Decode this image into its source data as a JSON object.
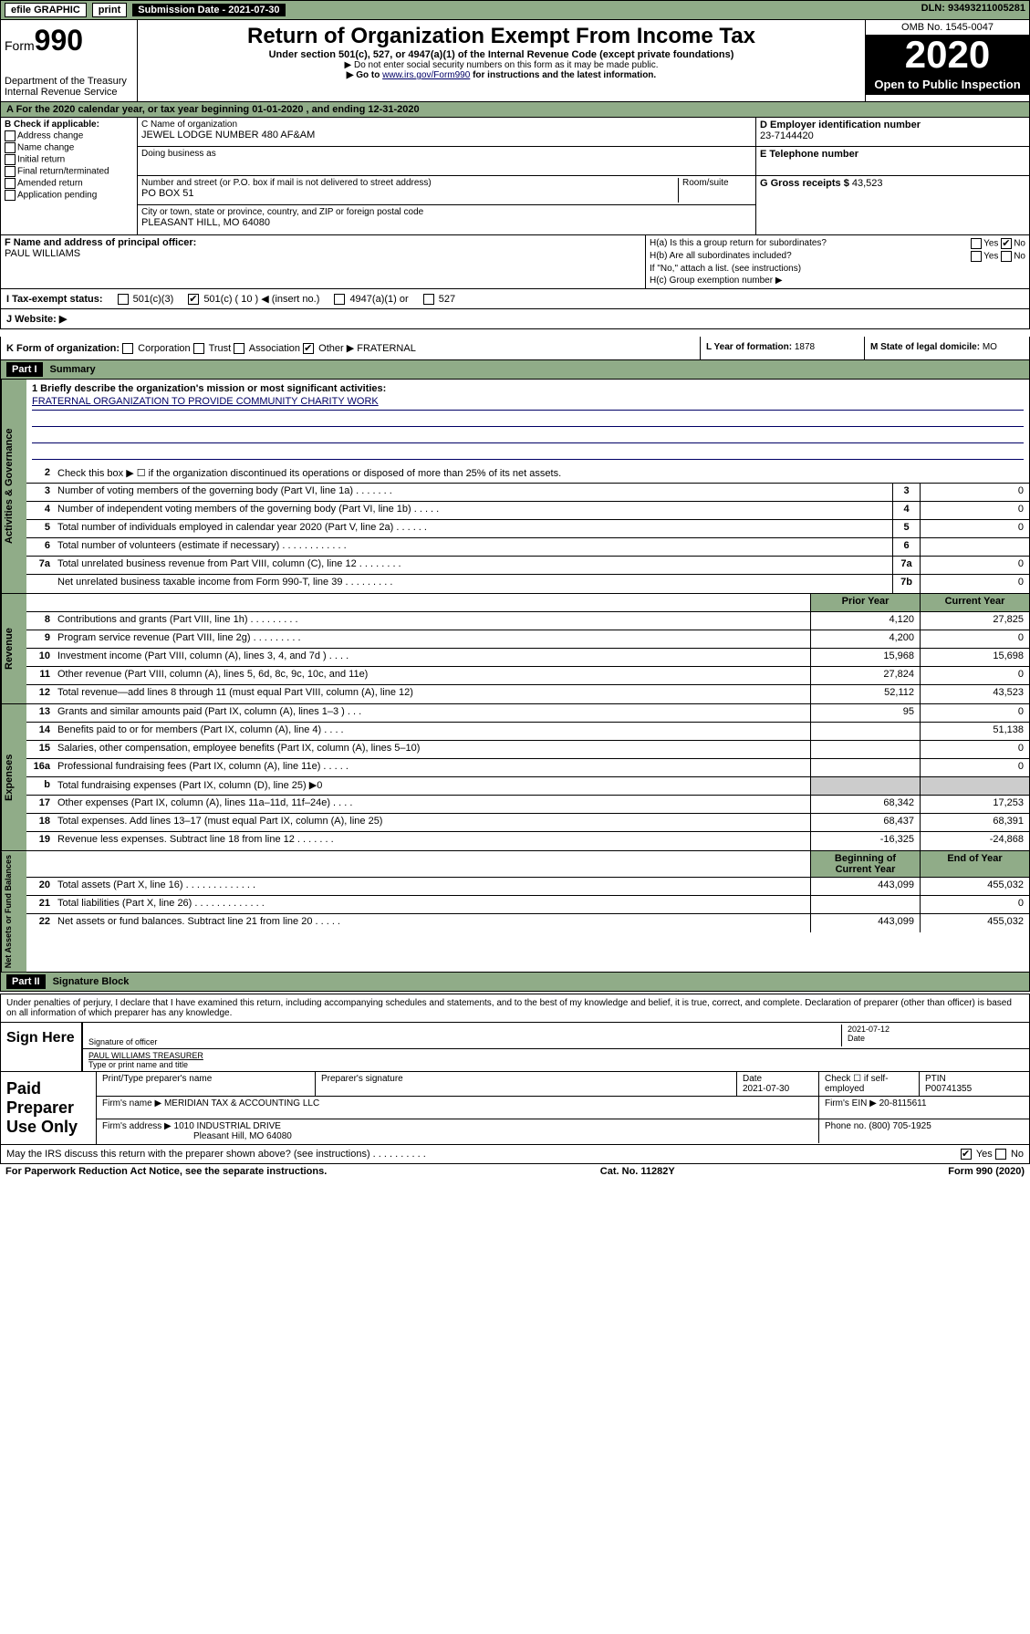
{
  "topbar": {
    "efile": "efile GRAPHIC",
    "print": "print",
    "submission_label": "Submission Date - 2021-07-30",
    "dln": "DLN: 93493211005281"
  },
  "header": {
    "form_prefix": "Form",
    "form_number": "990",
    "dept1": "Department of the Treasury",
    "dept2": "Internal Revenue Service",
    "title": "Return of Organization Exempt From Income Tax",
    "subtitle": "Under section 501(c), 527, or 4947(a)(1) of the Internal Revenue Code (except private foundations)",
    "note1": "▶ Do not enter social security numbers on this form as it may be made public.",
    "note2_pre": "▶ Go to ",
    "note2_link": "www.irs.gov/Form990",
    "note2_post": " for instructions and the latest information.",
    "omb": "OMB No. 1545-0047",
    "year": "2020",
    "open_public": "Open to Public Inspection"
  },
  "row_a": "A For the 2020 calendar year, or tax year beginning 01-01-2020    , and ending 12-31-2020",
  "section_b": {
    "label": "B Check if applicable:",
    "opts": [
      "Address change",
      "Name change",
      "Initial return",
      "Final return/terminated",
      "Amended return",
      "Application pending"
    ]
  },
  "section_c": {
    "name_lbl": "C Name of organization",
    "name": "JEWEL LODGE NUMBER 480 AF&AM",
    "dba_lbl": "Doing business as",
    "addr_lbl": "Number and street (or P.O. box if mail is not delivered to street address)",
    "room_lbl": "Room/suite",
    "addr": "PO BOX 51",
    "city_lbl": "City or town, state or province, country, and ZIP or foreign postal code",
    "city": "PLEASANT HILL, MO  64080"
  },
  "section_d": {
    "lbl": "D Employer identification number",
    "val": "23-7144420"
  },
  "section_e": {
    "lbl": "E Telephone number",
    "val": ""
  },
  "section_g": {
    "lbl": "G Gross receipts $",
    "val": "43,523"
  },
  "section_f": {
    "lbl": "F Name and address of principal officer:",
    "val": "PAUL WILLIAMS"
  },
  "section_h": {
    "ha": "H(a)  Is this a group return for subordinates?",
    "hb": "H(b)  Are all subordinates included?",
    "hb_note": "If \"No,\" attach a list. (see instructions)",
    "hc": "H(c)  Group exemption number ▶",
    "yes": "Yes",
    "no": "No"
  },
  "tax_exempt": {
    "lbl": "I  Tax-exempt status:",
    "c3": "501(c)(3)",
    "c": "501(c) ( 10 ) ◀ (insert no.)",
    "a1": "4947(a)(1) or",
    "527": "527"
  },
  "website": {
    "lbl": "J  Website: ▶"
  },
  "section_k": {
    "lbl": "K Form of organization:",
    "corp": "Corporation",
    "trust": "Trust",
    "assoc": "Association",
    "other": "Other ▶",
    "other_val": "FRATERNAL"
  },
  "section_l": {
    "lbl": "L Year of formation:",
    "val": "1878"
  },
  "section_m": {
    "lbl": "M State of legal domicile:",
    "val": "MO"
  },
  "part1": {
    "title": "Part I",
    "subtitle": "Summary",
    "line1_lbl": "1  Briefly describe the organization's mission or most significant activities:",
    "mission": "FRATERNAL ORGANIZATION TO PROVIDE COMMUNITY CHARITY WORK",
    "line2": "Check this box ▶ ☐ if the organization discontinued its operations or disposed of more than 25% of its net assets.",
    "gov_label": "Activities & Governance",
    "rev_label": "Revenue",
    "exp_label": "Expenses",
    "net_label": "Net Assets or Fund Balances",
    "lines_gov": [
      {
        "n": "3",
        "d": "Number of voting members of the governing body (Part VI, line 1a)   .    .    .    .    .    .    .",
        "b": "3",
        "v": "0"
      },
      {
        "n": "4",
        "d": "Number of independent voting members of the governing body (Part VI, line 1b)   .    .    .    .    .",
        "b": "4",
        "v": "0"
      },
      {
        "n": "5",
        "d": "Total number of individuals employed in calendar year 2020 (Part V, line 2a)   .    .    .    .    .    .",
        "b": "5",
        "v": "0"
      },
      {
        "n": "6",
        "d": "Total number of volunteers (estimate if necessary)   .    .    .    .    .    .    .    .    .    .    .    .",
        "b": "6",
        "v": ""
      },
      {
        "n": "7a",
        "d": "Total unrelated business revenue from Part VIII, column (C), line 12   .    .    .    .    .    .    .    .",
        "b": "7a",
        "v": "0"
      },
      {
        "n": "",
        "d": "Net unrelated business taxable income from Form 990-T, line 39   .    .    .    .    .    .    .    .    .",
        "b": "7b",
        "v": "0"
      }
    ],
    "col_prior": "Prior Year",
    "col_current": "Current Year",
    "col_begin": "Beginning of Current Year",
    "col_end": "End of Year",
    "lines_rev": [
      {
        "n": "8",
        "d": "Contributions and grants (Part VIII, line 1h)   .    .    .    .    .    .    .    .    .",
        "p": "4,120",
        "c": "27,825"
      },
      {
        "n": "9",
        "d": "Program service revenue (Part VIII, line 2g)   .    .    .    .    .    .    .    .    .",
        "p": "4,200",
        "c": "0"
      },
      {
        "n": "10",
        "d": "Investment income (Part VIII, column (A), lines 3, 4, and 7d )   .    .    .    .",
        "p": "15,968",
        "c": "15,698"
      },
      {
        "n": "11",
        "d": "Other revenue (Part VIII, column (A), lines 5, 6d, 8c, 9c, 10c, and 11e)",
        "p": "27,824",
        "c": "0"
      },
      {
        "n": "12",
        "d": "Total revenue—add lines 8 through 11 (must equal Part VIII, column (A), line 12)",
        "p": "52,112",
        "c": "43,523"
      }
    ],
    "lines_exp": [
      {
        "n": "13",
        "d": "Grants and similar amounts paid (Part IX, column (A), lines 1–3 )   .    .    .",
        "p": "95",
        "c": "0"
      },
      {
        "n": "14",
        "d": "Benefits paid to or for members (Part IX, column (A), line 4)   .    .    .    .",
        "p": "",
        "c": "51,138"
      },
      {
        "n": "15",
        "d": "Salaries, other compensation, employee benefits (Part IX, column (A), lines 5–10)",
        "p": "",
        "c": "0"
      },
      {
        "n": "16a",
        "d": "Professional fundraising fees (Part IX, column (A), line 11e)   .    .    .    .    .",
        "p": "",
        "c": "0"
      },
      {
        "n": "b",
        "d": "Total fundraising expenses (Part IX, column (D), line 25) ▶0",
        "p": "",
        "c": "",
        "gray": true
      },
      {
        "n": "17",
        "d": "Other expenses (Part IX, column (A), lines 11a–11d, 11f–24e)   .    .    .    .",
        "p": "68,342",
        "c": "17,253"
      },
      {
        "n": "18",
        "d": "Total expenses. Add lines 13–17 (must equal Part IX, column (A), line 25)",
        "p": "68,437",
        "c": "68,391"
      },
      {
        "n": "19",
        "d": "Revenue less expenses. Subtract line 18 from line 12   .    .    .    .    .    .    .",
        "p": "-16,325",
        "c": "-24,868"
      }
    ],
    "lines_net": [
      {
        "n": "20",
        "d": "Total assets (Part X, line 16)   .    .    .    .    .    .    .    .    .    .    .    .    .",
        "p": "443,099",
        "c": "455,032"
      },
      {
        "n": "21",
        "d": "Total liabilities (Part X, line 26)   .    .    .    .    .    .    .    .    .    .    .    .    .",
        "p": "",
        "c": "0"
      },
      {
        "n": "22",
        "d": "Net assets or fund balances. Subtract line 21 from line 20   .    .    .    .    .",
        "p": "443,099",
        "c": "455,032"
      }
    ]
  },
  "part2": {
    "title": "Part II",
    "subtitle": "Signature Block",
    "decl": "Under penalties of perjury, I declare that I have examined this return, including accompanying schedules and statements, and to the best of my knowledge and belief, it is true, correct, and complete. Declaration of preparer (other than officer) is based on all information of which preparer has any knowledge.",
    "sign_here": "Sign Here",
    "sig_officer_lbl": "Signature of officer",
    "sig_date": "2021-07-12",
    "sig_date_lbl": "Date",
    "name_title": "PAUL WILLIAMS  TREASURER",
    "name_title_lbl": "Type or print name and title"
  },
  "paid_prep": {
    "label": "Paid Preparer Use Only",
    "r1": {
      "c1_lbl": "Print/Type preparer's name",
      "c2_lbl": "Preparer's signature",
      "c3_lbl": "Date",
      "c3_val": "2021-07-30",
      "c4_lbl": "Check ☐ if self-employed",
      "c5_lbl": "PTIN",
      "c5_val": "P00741355"
    },
    "r2": {
      "lbl": "Firm's name      ▶",
      "val": "MERIDIAN TAX & ACCOUNTING LLC",
      "ein_lbl": "Firm's EIN ▶",
      "ein": "20-8115611"
    },
    "r3": {
      "lbl": "Firm's address  ▶",
      "val1": "1010 INDUSTRIAL DRIVE",
      "val2": "Pleasant Hill, MO  64080",
      "ph_lbl": "Phone no.",
      "ph": "(800) 705-1925"
    }
  },
  "footer": {
    "q": "May the IRS discuss this return with the preparer shown above? (see instructions)    .    .    .    .    .    .    .    .    .    .",
    "yes": "Yes",
    "no": "No",
    "pra": "For Paperwork Reduction Act Notice, see the separate instructions.",
    "cat": "Cat. No. 11282Y",
    "form": "Form 990 (2020)"
  }
}
